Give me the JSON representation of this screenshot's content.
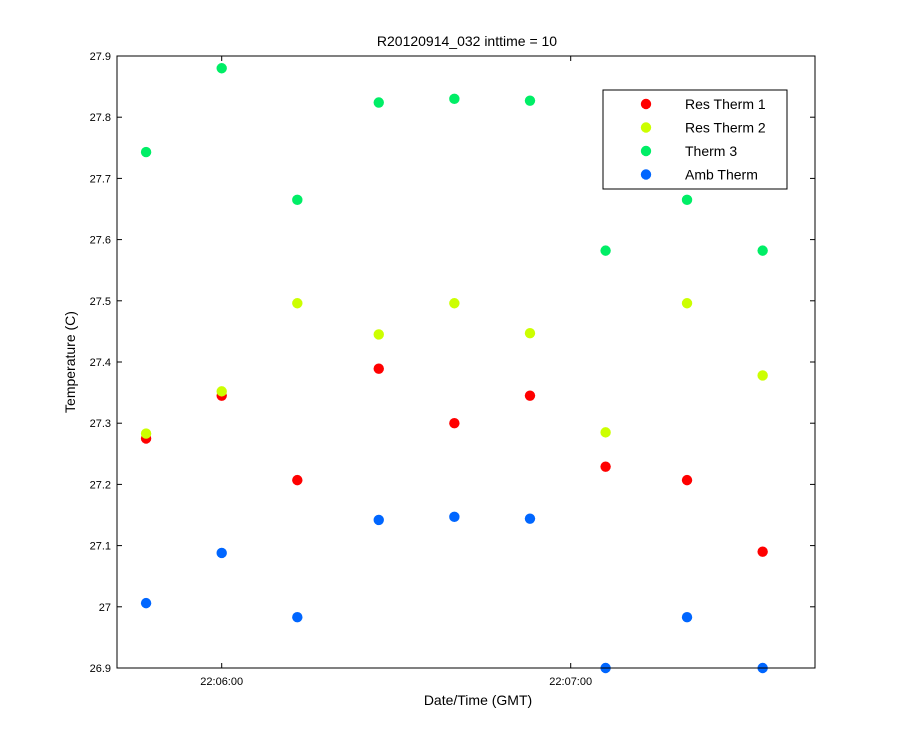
{
  "chart_data": {
    "type": "scatter",
    "title": "R20120914_032 inttime = 10",
    "xlabel": "Date/Time (GMT)",
    "ylabel": "Temperature (C)",
    "xlim": [
      "22:05:42",
      "22:07:42"
    ],
    "ylim": [
      26.9,
      27.9
    ],
    "xticks": [
      {
        "value": "22:06:00",
        "label": "22:06:00"
      },
      {
        "value": "22:07:00",
        "label": "22:07:00"
      }
    ],
    "yticks": [
      {
        "value": 26.9,
        "label": "26.9"
      },
      {
        "value": 27.0,
        "label": "27"
      },
      {
        "value": 27.1,
        "label": "27.1"
      },
      {
        "value": 27.2,
        "label": "27.2"
      },
      {
        "value": 27.3,
        "label": "27.3"
      },
      {
        "value": 27.4,
        "label": "27.4"
      },
      {
        "value": 27.5,
        "label": "27.5"
      },
      {
        "value": 27.6,
        "label": "27.6"
      },
      {
        "value": 27.7,
        "label": "27.7"
      },
      {
        "value": 27.8,
        "label": "27.8"
      },
      {
        "value": 27.9,
        "label": "27.9"
      }
    ],
    "grid": false,
    "legend": "top-right",
    "x": [
      "22:05:47",
      "22:06:00",
      "22:06:13",
      "22:06:27",
      "22:06:40",
      "22:06:53",
      "22:07:06",
      "22:07:20",
      "22:07:33"
    ],
    "series": [
      {
        "name": "Res Therm 1",
        "color": "#ff0000",
        "values": [
          27.275,
          27.345,
          27.207,
          27.389,
          27.3,
          27.345,
          27.229,
          27.207,
          27.09
        ]
      },
      {
        "name": "Res Therm 2",
        "color": "#ccff00",
        "values": [
          27.283,
          27.352,
          27.496,
          27.445,
          27.496,
          27.447,
          27.285,
          27.496,
          27.378
        ]
      },
      {
        "name": "Therm 3",
        "color": "#00ee66",
        "values": [
          27.743,
          27.88,
          27.665,
          27.824,
          27.83,
          27.827,
          27.582,
          27.665,
          27.582
        ]
      },
      {
        "name": "Amb Therm",
        "color": "#0066ff",
        "values": [
          27.006,
          27.088,
          26.983,
          27.142,
          27.147,
          27.144,
          26.9,
          26.983,
          26.9
        ]
      }
    ]
  }
}
